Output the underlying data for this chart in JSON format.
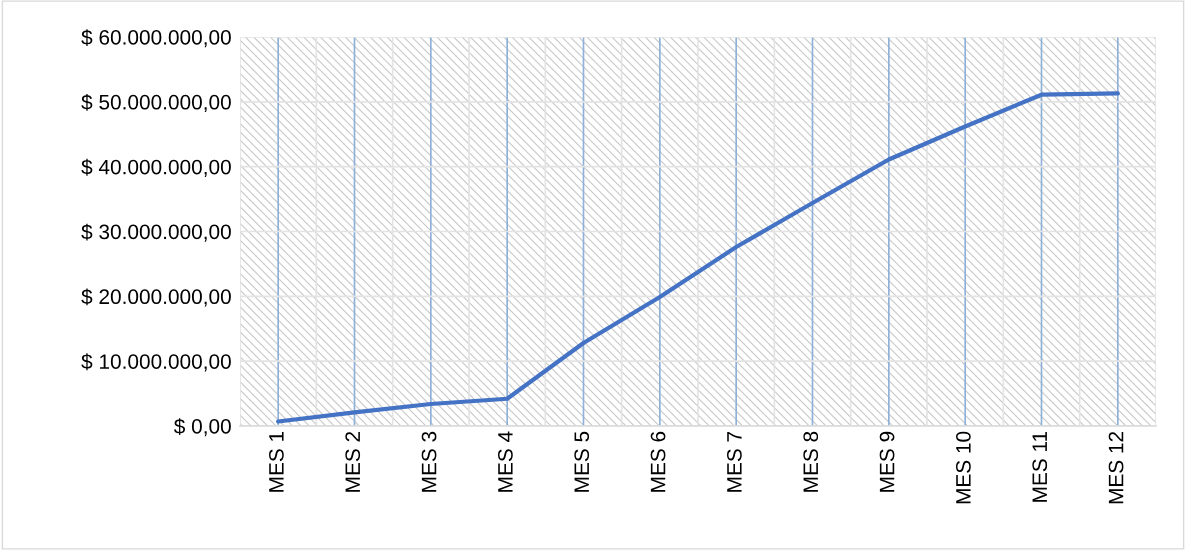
{
  "chart_data": {
    "type": "line",
    "categories": [
      "MES 1",
      "MES 2",
      "MES 3",
      "MES 4",
      "MES 5",
      "MES 6",
      "MES 7",
      "MES 8",
      "MES 9",
      "MES 10",
      "MES 11",
      "MES 12"
    ],
    "series": [
      {
        "color": "#4472c4",
        "values": [
          700000,
          2100000,
          3400000,
          4200000,
          12800000,
          19900000,
          27600000,
          34400000,
          41100000,
          46200000,
          51100000,
          51300000
        ]
      }
    ],
    "ylim": [
      0,
      60000000
    ],
    "yticks": [
      {
        "value": 0,
        "label": "$ 0,00"
      },
      {
        "value": 10000000,
        "label": "$ 10.000.000,00"
      },
      {
        "value": 20000000,
        "label": "$ 20.000.000,00"
      },
      {
        "value": 30000000,
        "label": "$ 30.000.000,00"
      },
      {
        "value": 40000000,
        "label": "$ 40.000.000,00"
      },
      {
        "value": 50000000,
        "label": "$ 50.000.000,00"
      },
      {
        "value": 60000000,
        "label": "$ 60.000.000,00"
      }
    ],
    "grid": true,
    "marker": "none",
    "line_style": "solid"
  }
}
